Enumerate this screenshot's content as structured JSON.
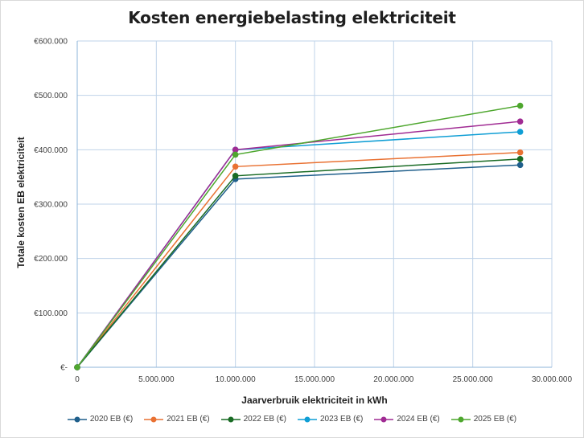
{
  "chart_data": {
    "type": "line",
    "title": "Kosten energiebelasting elektriciteit",
    "xlabel": "Jaarverbruik elektriciteit in kWh",
    "ylabel": "Totale kosten EB elektriciteit",
    "xlim": [
      0,
      30000000
    ],
    "ylim": [
      0,
      600000
    ],
    "x_ticks": [
      0,
      5000000,
      10000000,
      15000000,
      20000000,
      25000000,
      30000000
    ],
    "x_tick_labels": [
      "0",
      "5.000.000",
      "10.000.000",
      "15.000.000",
      "20.000.000",
      "25.000.000",
      "30.000.000"
    ],
    "y_ticks": [
      0,
      100000,
      200000,
      300000,
      400000,
      500000,
      600000
    ],
    "y_tick_labels": [
      "€-",
      "€100.000",
      "€200.000",
      "€300.000",
      "€400.000",
      "€500.000",
      "€600.000"
    ],
    "grid": true,
    "legend_position": "bottom",
    "x": [
      0,
      10000000,
      28000000
    ],
    "series": [
      {
        "name": "2020 EB (€)",
        "color": "#1f5f8b",
        "values": [
          0,
          346000,
          372000
        ]
      },
      {
        "name": "2021 EB (€)",
        "color": "#e97132",
        "values": [
          0,
          369000,
          395000
        ]
      },
      {
        "name": "2022 EB (€)",
        "color": "#196b24",
        "values": [
          0,
          352000,
          383000
        ]
      },
      {
        "name": "2023 EB (€)",
        "color": "#0f9ed5",
        "values": [
          0,
          400000,
          433000
        ]
      },
      {
        "name": "2024 EB (€)",
        "color": "#a02b93",
        "values": [
          0,
          400000,
          452000
        ]
      },
      {
        "name": "2025 EB (€)",
        "color": "#4ea72e",
        "values": [
          0,
          391000,
          481000
        ]
      }
    ]
  }
}
